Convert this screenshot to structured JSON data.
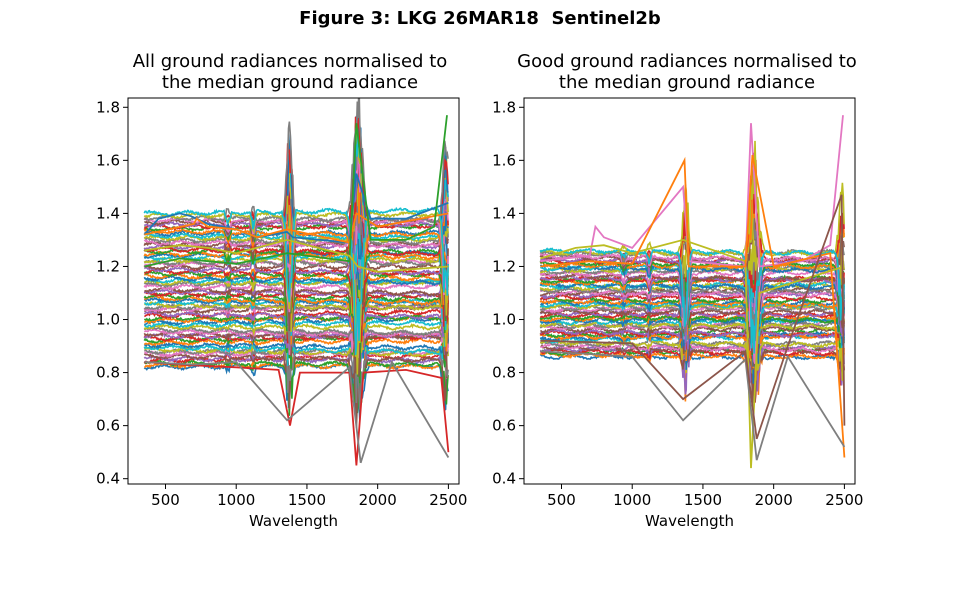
{
  "figure_title": "Figure 3: LKG 26MAR18  Sentinel2b",
  "colors": [
    "#1f77b4",
    "#ff7f0e",
    "#2ca02c",
    "#d62728",
    "#9467bd",
    "#8c564b",
    "#e377c2",
    "#7f7f7f",
    "#bcbd22",
    "#17becf"
  ],
  "chart_data": [
    {
      "type": "line",
      "title": [
        "All ground radiances normalised to",
        "the median ground radiance"
      ],
      "xlabel": "Wavelength",
      "ylabel": "",
      "xlim": [
        235,
        2575
      ],
      "ylim": [
        0.38,
        1.835
      ],
      "xticks": [
        500,
        1000,
        1500,
        2000,
        2500
      ],
      "yticks": [
        0.4,
        0.6,
        0.8,
        1.0,
        1.2,
        1.4,
        1.6,
        1.8
      ],
      "ytick_labels": [
        "0.4",
        "0.6",
        "0.8",
        "1.0",
        "1.2",
        "1.4",
        "1.6",
        "1.8"
      ],
      "x_range": [
        350,
        2500
      ],
      "series_count": 70,
      "band_min": 0.82,
      "band_max": 1.4,
      "series": [
        {
          "name": "",
          "color": "#1f77b4",
          "points": [
            [
              350,
              1.32
            ],
            [
              450,
              1.38
            ],
            [
              600,
              1.4
            ],
            [
              680,
              1.39
            ],
            [
              800,
              1.36
            ],
            [
              1000,
              1.34
            ],
            [
              1150,
              1.31
            ],
            [
              1360,
              1.33
            ],
            [
              1400,
              1.31
            ],
            [
              1800,
              1.29
            ],
            [
              1850,
              1.55
            ],
            [
              1950,
              1.38
            ],
            [
              2200,
              1.38
            ],
            [
              2400,
              1.42
            ],
            [
              2500,
              1.44
            ]
          ]
        },
        {
          "name": "",
          "color": "#ff7f0e",
          "points": [
            [
              350,
              1.32
            ],
            [
              700,
              1.36
            ],
            [
              720,
              1.38
            ],
            [
              800,
              1.35
            ],
            [
              1000,
              1.34
            ],
            [
              1150,
              1.31
            ],
            [
              1360,
              1.34
            ],
            [
              1800,
              1.29
            ],
            [
              1850,
              1.4
            ],
            [
              2000,
              1.35
            ],
            [
              2300,
              1.38
            ],
            [
              2500,
              1.4
            ]
          ]
        },
        {
          "name": "",
          "color": "#2ca02c",
          "points": [
            [
              350,
              1.2
            ],
            [
              600,
              1.23
            ],
            [
              800,
              1.22
            ],
            [
              1000,
              1.21
            ],
            [
              1360,
              1.25
            ],
            [
              1800,
              1.22
            ],
            [
              1850,
              1.74
            ],
            [
              1950,
              1.3
            ],
            [
              2200,
              1.3
            ],
            [
              2400,
              1.35
            ],
            [
              2490,
              1.77
            ]
          ]
        },
        {
          "name": "",
          "color": "#bcbd22",
          "points": [
            [
              350,
              1.26
            ],
            [
              600,
              1.28
            ],
            [
              800,
              1.27
            ],
            [
              1000,
              1.25
            ],
            [
              1360,
              1.3
            ],
            [
              1800,
              1.24
            ],
            [
              1860,
              1.2
            ],
            [
              2000,
              1.18
            ],
            [
              2500,
              1.2
            ]
          ]
        },
        {
          "name": "",
          "color": "#d62728",
          "points": [
            [
              350,
              0.84
            ],
            [
              600,
              0.83
            ],
            [
              1000,
              0.82
            ],
            [
              1300,
              0.81
            ],
            [
              1380,
              0.6
            ],
            [
              1450,
              0.8
            ],
            [
              1800,
              0.8
            ],
            [
              1850,
              0.45
            ],
            [
              1900,
              0.8
            ],
            [
              2200,
              0.81
            ],
            [
              2450,
              0.78
            ],
            [
              2500,
              0.5
            ]
          ]
        },
        {
          "name": "",
          "color": "#7f7f7f",
          "points": [
            [
              350,
              0.84
            ],
            [
              700,
              0.83
            ],
            [
              1000,
              0.84
            ],
            [
              1360,
              0.62
            ],
            [
              1800,
              0.82
            ],
            [
              1880,
              0.46
            ],
            [
              2100,
              0.84
            ],
            [
              2500,
              0.48
            ]
          ]
        }
      ]
    },
    {
      "type": "line",
      "title": [
        "Good ground radiances normalised to",
        "the median ground radiance"
      ],
      "xlabel": "Wavelength",
      "ylabel": "",
      "xlim": [
        235,
        2575
      ],
      "ylim": [
        0.38,
        1.835
      ],
      "xticks": [
        500,
        1000,
        1500,
        2000,
        2500
      ],
      "yticks": [
        0.4,
        0.6,
        0.8,
        1.0,
        1.2,
        1.4,
        1.6,
        1.8
      ],
      "ytick_labels": [
        "0.4",
        "0.6",
        "0.8",
        "1.0",
        "1.2",
        "1.4",
        "1.6",
        "1.8"
      ],
      "x_range": [
        350,
        2500
      ],
      "series_count": 60,
      "band_min": 0.86,
      "band_max": 1.26,
      "series": [
        {
          "name": "",
          "color": "#e377c2",
          "points": [
            [
              350,
              1.22
            ],
            [
              700,
              1.24
            ],
            [
              740,
              1.35
            ],
            [
              800,
              1.31
            ],
            [
              1000,
              1.27
            ],
            [
              1360,
              1.5
            ],
            [
              1400,
              1.22
            ],
            [
              1800,
              1.2
            ],
            [
              1840,
              1.74
            ],
            [
              1900,
              1.2
            ],
            [
              2200,
              1.22
            ],
            [
              2400,
              1.28
            ],
            [
              2490,
              1.77
            ]
          ]
        },
        {
          "name": "",
          "color": "#bcbd22",
          "points": [
            [
              350,
              1.23
            ],
            [
              600,
              1.27
            ],
            [
              800,
              1.28
            ],
            [
              1000,
              1.25
            ],
            [
              1360,
              1.3
            ],
            [
              1800,
              1.22
            ],
            [
              1840,
              0.44
            ],
            [
              1900,
              1.1
            ],
            [
              2500,
              1.2
            ]
          ]
        },
        {
          "name": "",
          "color": "#ff7f0e",
          "points": [
            [
              350,
              1.2
            ],
            [
              700,
              1.22
            ],
            [
              1000,
              1.21
            ],
            [
              1370,
              1.6
            ],
            [
              1400,
              1.2
            ],
            [
              1800,
              1.2
            ],
            [
              1850,
              1.62
            ],
            [
              2000,
              1.2
            ],
            [
              2400,
              1.25
            ],
            [
              2500,
              0.48
            ]
          ]
        },
        {
          "name": "",
          "color": "#7f7f7f",
          "points": [
            [
              350,
              0.88
            ],
            [
              700,
              0.87
            ],
            [
              1000,
              0.86
            ],
            [
              1360,
              0.62
            ],
            [
              1800,
              0.85
            ],
            [
              1880,
              0.47
            ],
            [
              2100,
              0.86
            ],
            [
              2500,
              0.52
            ]
          ]
        },
        {
          "name": "",
          "color": "#8c564b",
          "points": [
            [
              350,
              0.92
            ],
            [
              1000,
              0.91
            ],
            [
              1360,
              0.7
            ],
            [
              1800,
              0.88
            ],
            [
              1880,
              0.55
            ],
            [
              2100,
              0.9
            ],
            [
              2480,
              1.47
            ],
            [
              2500,
              0.6
            ]
          ]
        }
      ]
    }
  ]
}
